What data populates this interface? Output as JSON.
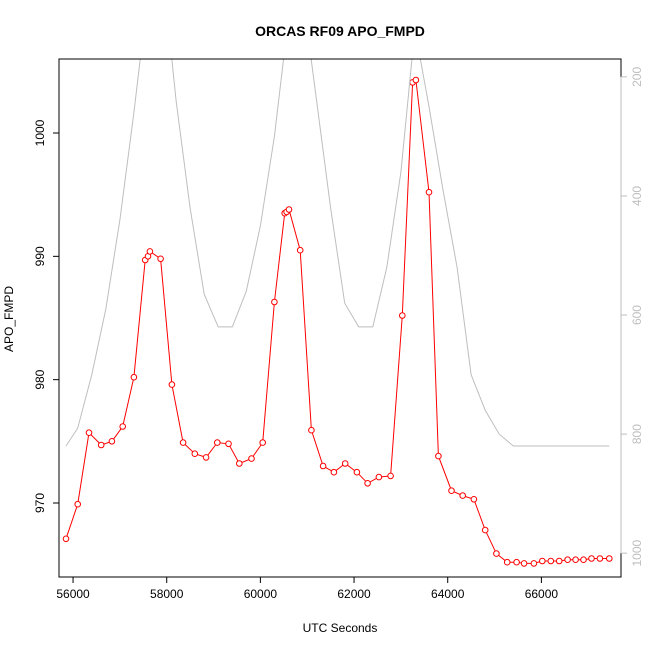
{
  "chart_data": {
    "type": "line",
    "title": "ORCAS RF09 APO_FMPD",
    "xlabel": "UTC Seconds",
    "ylabel": "APO_FMPD",
    "xlim": [
      55700,
      67700
    ],
    "ylim": [
      964,
      1006
    ],
    "y2lim": [
      1040,
      170
    ],
    "x_ticks": [
      56000,
      58000,
      60000,
      62000,
      64000,
      66000
    ],
    "y_ticks": [
      970,
      980,
      990,
      1000
    ],
    "y2_ticks": [
      200,
      400,
      600,
      800,
      1000
    ],
    "series": [
      {
        "axis": "left",
        "color": "#ff0000",
        "marker": "open-circle",
        "x": [
          55850,
          56100,
          56340,
          56600,
          56830,
          57060,
          57300,
          57540,
          57600,
          57640,
          57870,
          58110,
          58350,
          58600,
          58840,
          59080,
          59320,
          59550,
          59810,
          60050,
          60300,
          60520,
          60560,
          60610,
          60850,
          61090,
          61340,
          61570,
          61810,
          62060,
          62290,
          62530,
          62780,
          63030,
          63250,
          63320,
          63600,
          63800,
          64080,
          64320,
          64560,
          64800,
          65040,
          65270,
          65470,
          65630,
          65840,
          66020,
          66200,
          66380,
          66560,
          66730,
          66900,
          67070,
          67250,
          67450
        ],
        "values": [
          967.1,
          969.9,
          975.7,
          974.7,
          975.0,
          976.2,
          980.2,
          989.7,
          990.0,
          990.4,
          989.8,
          979.6,
          974.9,
          974.0,
          973.7,
          974.9,
          974.8,
          973.2,
          973.6,
          974.9,
          986.3,
          993.5,
          993.6,
          993.8,
          990.5,
          975.9,
          973.0,
          972.5,
          973.2,
          972.5,
          971.6,
          972.1,
          972.2,
          985.2,
          1004.1,
          1004.3,
          995.2,
          973.8,
          971.0,
          970.6,
          970.3,
          967.8,
          965.9,
          965.2,
          965.2,
          965.1,
          965.1,
          965.3,
          965.3,
          965.3,
          965.4,
          965.4,
          965.4,
          965.5,
          965.5,
          965.5
        ]
      },
      {
        "axis": "right",
        "color": "#bebebe",
        "marker": "none",
        "x": [
          55850,
          56100,
          56400,
          56700,
          57000,
          57300,
          57600,
          57900,
          58200,
          58500,
          58800,
          59100,
          59400,
          59700,
          60000,
          60300,
          60600,
          60900,
          61200,
          61500,
          61800,
          62100,
          62400,
          62700,
          63000,
          63300,
          63600,
          63900,
          64200,
          64500,
          64800,
          65100,
          65400,
          65700,
          66000,
          66300,
          66600,
          66900,
          67200,
          67450
        ],
        "values": [
          820,
          790,
          700,
          590,
          440,
          260,
          60,
          10,
          240,
          420,
          565,
          620,
          620,
          560,
          450,
          300,
          100,
          60,
          240,
          420,
          580,
          620,
          620,
          520,
          360,
          120,
          250,
          390,
          520,
          700,
          760,
          800,
          820,
          820,
          820,
          820,
          820,
          820,
          820,
          820
        ]
      }
    ]
  }
}
